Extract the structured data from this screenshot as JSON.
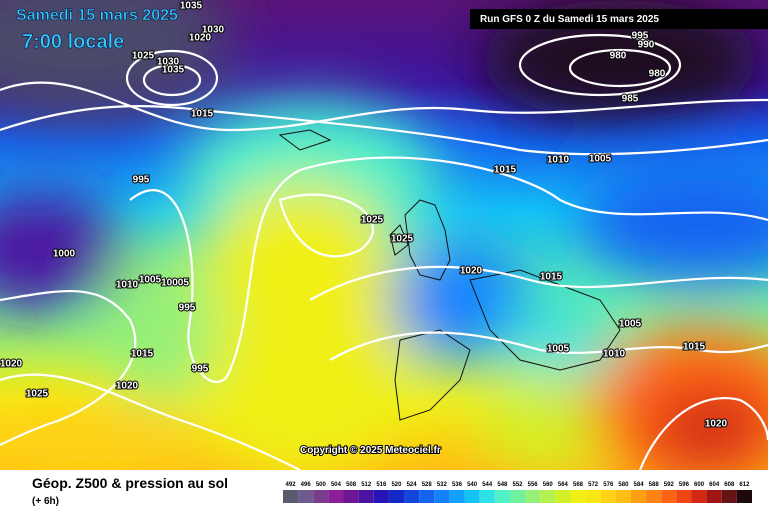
{
  "header": {
    "date": "Samedi 15 mars 2025",
    "time": "7:00 locale",
    "run": "Run GFS 0 Z du Samedi 15 mars 2025"
  },
  "isobar_labels": [
    "1035",
    "1030",
    "1020",
    "1025",
    "1030",
    "1035",
    "1015",
    "995",
    "1000",
    "1010",
    "1005",
    "10005",
    "995",
    "1015",
    "995",
    "1020",
    "1020",
    "1025",
    "1025",
    "1025",
    "1020",
    "1015",
    "1010",
    "1005",
    "995",
    "990",
    "980",
    "980",
    "985",
    "1015",
    "1005",
    "1005",
    "1010",
    "1015",
    "1020"
  ],
  "footer": {
    "title": "Géop. Z500 & pression au sol",
    "step": "(+ 6h)",
    "copyright": "Copyright © 2025 Meteociel.fr"
  },
  "legend": {
    "labels": [
      "492",
      "496",
      "500",
      "504",
      "508",
      "512",
      "516",
      "520",
      "524",
      "528",
      "532",
      "536",
      "540",
      "544",
      "548",
      "552",
      "556",
      "560",
      "564",
      "568",
      "572",
      "576",
      "580",
      "584",
      "588",
      "592",
      "596",
      "600",
      "604",
      "608",
      "612"
    ],
    "colors": [
      "#5a5a6e",
      "#6e5a8c",
      "#7a3c8c",
      "#8c1e96",
      "#6e1496",
      "#4b14a0",
      "#2814b4",
      "#1428c8",
      "#1446dc",
      "#1464f0",
      "#1482ff",
      "#14a0ff",
      "#14c3f5",
      "#2de1e6",
      "#50f0c8",
      "#6ef0a0",
      "#96f078",
      "#b4f050",
      "#d2f028",
      "#f0f014",
      "#fae614",
      "#ffd214",
      "#ffbe14",
      "#ffa014",
      "#ff8214",
      "#ff6414",
      "#f04614",
      "#d22814",
      "#a01414",
      "#641414",
      "#1e0a0a"
    ]
  }
}
